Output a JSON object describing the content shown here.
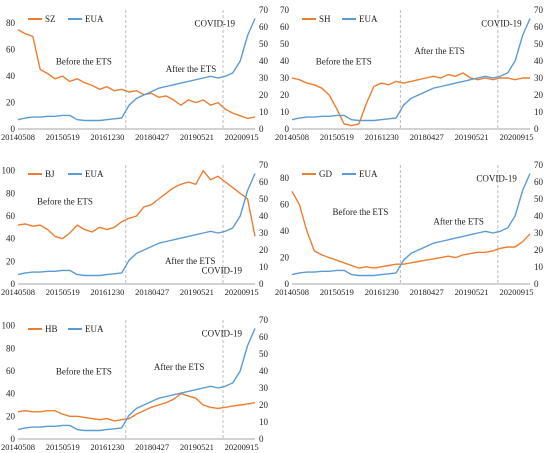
{
  "colors": {
    "city": "#ED7D31",
    "eua": "#5B9BD5",
    "axis": "#888888",
    "vline": "#aaaaaa"
  },
  "chart_data": [
    {
      "type": "line",
      "legend": [
        "SZ",
        "EUA"
      ],
      "x_ticks": [
        "20140508",
        "20150519",
        "20161230",
        "20180427",
        "20190521",
        "20200915"
      ],
      "y_left_ticks": [
        "0",
        "20",
        "40",
        "60",
        "80"
      ],
      "y_right_ticks": [
        "0",
        "10",
        "20",
        "30",
        "40",
        "50",
        "60",
        "70"
      ],
      "ylim_left": [
        0,
        90
      ],
      "ylim_right": [
        0,
        70
      ],
      "annotations": [
        "COVID-19",
        "Before the ETS",
        "After the ETS"
      ],
      "series": [
        {
          "name": "SZ",
          "axis": "left",
          "values": [
            75,
            72,
            70,
            45,
            42,
            38,
            40,
            36,
            38,
            35,
            33,
            30,
            32,
            29,
            30,
            28,
            29,
            26,
            27,
            24,
            25,
            22,
            18,
            22,
            20,
            22,
            18,
            20,
            15,
            12,
            10,
            8,
            9
          ]
        },
        {
          "name": "EUA",
          "axis": "right",
          "values": [
            5.5,
            6.5,
            7,
            7,
            7.5,
            7.5,
            8,
            8,
            5.5,
            5,
            5,
            5,
            5.5,
            6,
            6.5,
            14,
            18,
            20,
            22,
            24,
            25,
            26,
            27,
            28,
            29,
            30,
            31,
            30,
            31,
            33,
            40,
            55,
            65
          ]
        }
      ]
    },
    {
      "type": "line",
      "legend": [
        "SH",
        "EUA"
      ],
      "x_ticks": [
        "20140508",
        "20150519",
        "20161230",
        "20180427",
        "20190521",
        "20200915"
      ],
      "y_left_ticks": [
        "0",
        "10",
        "20",
        "30",
        "40",
        "50",
        "60",
        "70"
      ],
      "y_right_ticks": [
        "0",
        "10",
        "20",
        "30",
        "40",
        "50",
        "60",
        "70"
      ],
      "ylim_left": [
        0,
        70
      ],
      "ylim_right": [
        0,
        70
      ],
      "annotations": [
        "COVID-19",
        "Before the ETS",
        "After the ETS"
      ],
      "series": [
        {
          "name": "SH",
          "axis": "left",
          "values": [
            30,
            29,
            27,
            26,
            24,
            20,
            12,
            3,
            2,
            3,
            15,
            25,
            27,
            26,
            28,
            27,
            28,
            29,
            30,
            31,
            30,
            32,
            31,
            33,
            30,
            29,
            30,
            29,
            30,
            30,
            29,
            30,
            30
          ]
        },
        {
          "name": "EUA",
          "axis": "right",
          "values": [
            5.5,
            6.5,
            7,
            7,
            7.5,
            7.5,
            8,
            8,
            5.5,
            5,
            5,
            5,
            5.5,
            6,
            6.5,
            14,
            18,
            20,
            22,
            24,
            25,
            26,
            27,
            28,
            29,
            30,
            31,
            30,
            31,
            33,
            40,
            55,
            65
          ]
        }
      ]
    },
    {
      "type": "line",
      "legend": [
        "BJ",
        "EUA"
      ],
      "x_ticks": [
        "20140508",
        "20150519",
        "20161230",
        "20180427",
        "20190521",
        "20200915"
      ],
      "y_left_ticks": [
        "0",
        "20",
        "40",
        "60",
        "80",
        "100"
      ],
      "y_right_ticks": [
        "0",
        "10",
        "20",
        "30",
        "40",
        "50",
        "60",
        "70"
      ],
      "ylim_left": [
        0,
        105
      ],
      "ylim_right": [
        0,
        70
      ],
      "annotations": [
        "Before the ETS",
        "After the ETS",
        "COVID-19"
      ],
      "series": [
        {
          "name": "BJ",
          "axis": "left",
          "values": [
            52,
            53,
            51,
            52,
            48,
            42,
            40,
            45,
            52,
            48,
            46,
            50,
            48,
            50,
            55,
            58,
            60,
            68,
            70,
            75,
            80,
            85,
            88,
            90,
            88,
            100,
            92,
            95,
            90,
            85,
            80,
            75,
            42
          ]
        },
        {
          "name": "EUA",
          "axis": "right",
          "values": [
            5.5,
            6.5,
            7,
            7,
            7.5,
            7.5,
            8,
            8,
            5.5,
            5,
            5,
            5,
            5.5,
            6,
            6.5,
            14,
            18,
            20,
            22,
            24,
            25,
            26,
            27,
            28,
            29,
            30,
            31,
            30,
            31,
            33,
            40,
            55,
            65
          ]
        }
      ]
    },
    {
      "type": "line",
      "legend": [
        "GD",
        "EUA"
      ],
      "x_ticks": [
        "20140508",
        "20150519",
        "20161230",
        "20180427",
        "20190521",
        "20200915"
      ],
      "y_left_ticks": [
        "0",
        "20",
        "40",
        "60",
        "80"
      ],
      "y_right_ticks": [
        "0",
        "10",
        "20",
        "30",
        "40",
        "50",
        "60",
        "70"
      ],
      "ylim_left": [
        0,
        90
      ],
      "ylim_right": [
        0,
        70
      ],
      "annotations": [
        "COVID-19",
        "Before the ETS",
        "After the ETS"
      ],
      "series": [
        {
          "name": "GD",
          "axis": "left",
          "values": [
            70,
            60,
            40,
            25,
            22,
            20,
            18,
            16,
            14,
            12,
            13,
            12,
            13,
            14,
            15,
            15,
            16,
            17,
            18,
            19,
            20,
            21,
            20,
            22,
            23,
            24,
            24,
            25,
            27,
            28,
            28,
            32,
            38
          ]
        },
        {
          "name": "EUA",
          "axis": "right",
          "values": [
            5.5,
            6.5,
            7,
            7,
            7.5,
            7.5,
            8,
            8,
            5.5,
            5,
            5,
            5,
            5.5,
            6,
            6.5,
            14,
            18,
            20,
            22,
            24,
            25,
            26,
            27,
            28,
            29,
            30,
            31,
            30,
            31,
            33,
            40,
            55,
            65
          ]
        }
      ]
    },
    {
      "type": "line",
      "legend": [
        "HB",
        "EUA"
      ],
      "x_ticks": [
        "20140508",
        "20150519",
        "20161230",
        "20180427",
        "20190521",
        "20200915"
      ],
      "y_left_ticks": [
        "0",
        "20",
        "40",
        "60",
        "80",
        "100"
      ],
      "y_right_ticks": [
        "0",
        "10",
        "20",
        "30",
        "40",
        "50",
        "60",
        "70"
      ],
      "ylim_left": [
        0,
        105
      ],
      "ylim_right": [
        0,
        70
      ],
      "annotations": [
        "COVID-19",
        "Before the ETS",
        "After the ETS"
      ],
      "series": [
        {
          "name": "HB",
          "axis": "left",
          "values": [
            24,
            25,
            24,
            24,
            25,
            25,
            22,
            20,
            20,
            19,
            18,
            17,
            18,
            16,
            17,
            18,
            22,
            25,
            28,
            30,
            32,
            35,
            40,
            38,
            36,
            30,
            28,
            27,
            28,
            29,
            30,
            31,
            32
          ]
        },
        {
          "name": "EUA",
          "axis": "right",
          "values": [
            5.5,
            6.5,
            7,
            7,
            7.5,
            7.5,
            8,
            8,
            5.5,
            5,
            5,
            5,
            5.5,
            6,
            6.5,
            14,
            18,
            20,
            22,
            24,
            25,
            26,
            27,
            28,
            29,
            30,
            31,
            30,
            31,
            33,
            40,
            55,
            65
          ]
        }
      ]
    }
  ]
}
